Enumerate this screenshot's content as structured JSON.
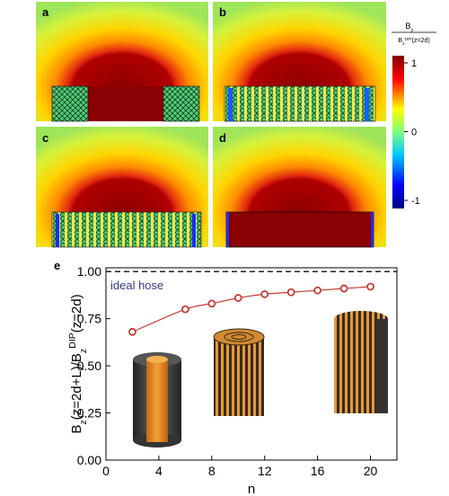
{
  "panels": {
    "labels": [
      "a",
      "b",
      "c",
      "d"
    ]
  },
  "colorbar": {
    "label_top": [
      "B",
      "z"
    ],
    "label_bottom": [
      "B",
      "z",
      "DIP",
      "(z=2d)"
    ],
    "ticks": [
      1,
      0,
      -1
    ]
  },
  "chart_data": {
    "type": "line",
    "panel_label": "e",
    "x": [
      2,
      6,
      8,
      10,
      12,
      14,
      16,
      18,
      20
    ],
    "series": [
      {
        "color": "#c43c35",
        "values": [
          0.68,
          0.8,
          0.83,
          0.86,
          0.88,
          0.89,
          0.9,
          0.91,
          0.92
        ]
      }
    ],
    "reference": {
      "value": 1.0,
      "label": "ideal hose"
    },
    "xlabel": "n",
    "ylabel_parts": [
      "B",
      "z",
      "(z=2d+L)/B",
      "z",
      "DIP",
      "(z=2d)"
    ],
    "xlim": [
      0,
      22
    ],
    "ylim": [
      0,
      1.02
    ],
    "xticks": [
      0,
      4,
      8,
      12,
      16,
      20
    ],
    "yticks": [
      {
        "value": 0,
        "label": "0.00"
      },
      {
        "value": 0.25,
        "label": "0.25"
      },
      {
        "value": 0.5,
        "label": "0.50"
      },
      {
        "value": 0.75,
        "label": "0.75"
      },
      {
        "value": 1.0,
        "label": "1.00"
      }
    ]
  }
}
